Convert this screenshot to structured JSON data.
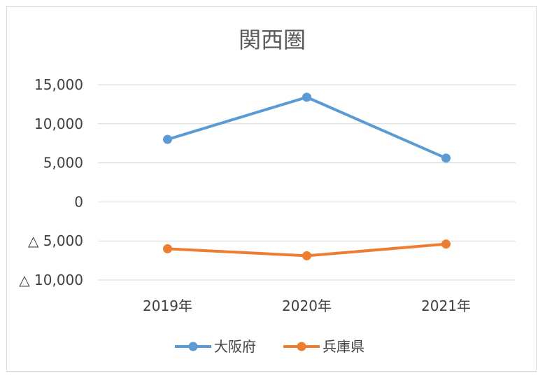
{
  "chart_data": {
    "type": "line",
    "title": "関西圏",
    "categories": [
      "2019年",
      "2020年",
      "2021年"
    ],
    "ylim": [
      -10000,
      15000
    ],
    "yticks": [
      15000,
      10000,
      5000,
      0,
      -5000,
      -10000
    ],
    "ytick_labels": [
      "15,000",
      "10,000",
      "5,000",
      "0",
      "△ 5,000",
      "△ 10,000"
    ],
    "grid": true,
    "legend_position": "bottom",
    "series": [
      {
        "name": "大阪府",
        "color": "#5b9bd5",
        "values": [
          8000,
          13400,
          5600
        ]
      },
      {
        "name": "兵庫県",
        "color": "#ed7d31",
        "values": [
          -6000,
          -6900,
          -5400
        ]
      }
    ]
  }
}
